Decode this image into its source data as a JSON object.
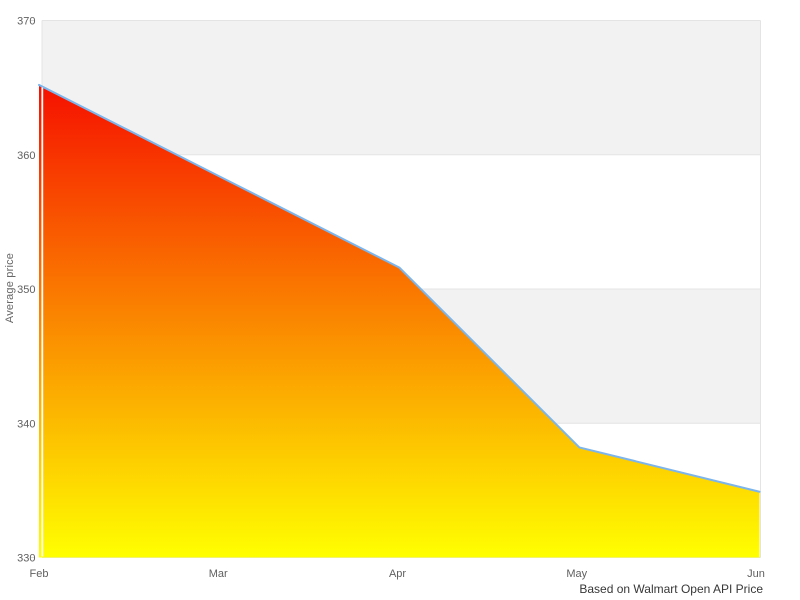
{
  "caption": "Based on Walmart Open API Price",
  "y_axis": {
    "title": "Average price",
    "tick_labels": [
      "330",
      "340",
      "350",
      "360",
      "370"
    ]
  },
  "x_axis": {
    "tick_labels": [
      "Feb",
      "Mar",
      "Apr",
      "May",
      "Jun"
    ]
  },
  "chart_data": {
    "type": "area",
    "title": "",
    "subtitle": "",
    "xlabel": "",
    "ylabel": "Average price",
    "categories": [
      "Feb",
      "Mar",
      "Apr",
      "May",
      "Jun"
    ],
    "series": [
      {
        "name": "Average price",
        "values": [
          365.2,
          358.4,
          351.6,
          338.2,
          334.9
        ]
      }
    ],
    "ylim": [
      330,
      370
    ],
    "y_tick_step": 10,
    "legend": "none",
    "grid": "alternating horizontal bands (gray/white) between y gridlines",
    "annotations": [
      "Based on Walmart Open API Price"
    ],
    "colors": {
      "line": "#7cb5ec",
      "area_gradient_top": "#f61000",
      "area_gradient_bottom": "#ffff00",
      "band_fill": "#f2f2f2",
      "grid_line": "#e4e4e4",
      "axis_tick_dash": "#d9d9d9",
      "tick_text": "#606060",
      "axis_title_text": "#666666",
      "caption_text": "#373737",
      "background": "#ffffff"
    }
  }
}
